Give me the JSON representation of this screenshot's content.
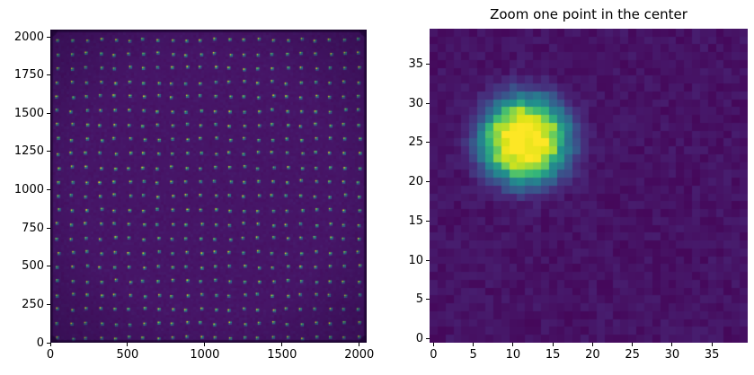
{
  "figure": {
    "background": "#ffffff",
    "kind": "matplotlib-figure"
  },
  "colors": {
    "axis_text": "#000000",
    "tick_mark": "#000000",
    "image_background_left": "#461567",
    "image_background_right": "#440b5a",
    "spot_peak": "#fde725",
    "viridis_anchors": [
      "#440154",
      "#482878",
      "#3e4a89",
      "#31688e",
      "#26828e",
      "#21918c",
      "#35b779",
      "#6ece58",
      "#b5de2b",
      "#dde318",
      "#fde725"
    ]
  },
  "chart_data": [
    {
      "type": "heatmap",
      "panel": "left",
      "title": "",
      "colormap": "viridis",
      "xlim": [
        0,
        2048
      ],
      "ylim": [
        0,
        2048
      ],
      "xticks": [
        0,
        500,
        1000,
        1500,
        2000
      ],
      "yticks": [
        0,
        250,
        500,
        750,
        1000,
        1250,
        1500,
        1750,
        2000
      ],
      "grid_on": false,
      "background_value": 0.052,
      "noise_amplitude": 0.012,
      "point_grid": {
        "nx": 22,
        "ny": 22,
        "x_start": 50,
        "y_start": 30,
        "spacing": 92.8,
        "jitter": 9,
        "point_value_bright": [
          0.7,
          0.97
        ],
        "point_value_dim": [
          0.4,
          0.62
        ]
      },
      "description": "Full 2048x2048 detector image (viridis) containing a regular 22x22 grid of small point sources on a dark purple background with darkened edges and corners"
    },
    {
      "type": "heatmap",
      "panel": "right",
      "title": "Zoom one point in the center",
      "colormap": "viridis",
      "xlim": [
        -0.5,
        39.5
      ],
      "ylim": [
        -0.5,
        39.5
      ],
      "xticks": [
        0,
        5,
        10,
        15,
        20,
        25,
        30,
        35
      ],
      "yticks": [
        0,
        5,
        10,
        15,
        20,
        25,
        30,
        35
      ],
      "grid_on": false,
      "grid_size": 40,
      "background_value": 0.045,
      "noise_amplitude": 0.028,
      "spot": {
        "cx": 11.5,
        "cy": 25.3,
        "sigma": 3.8,
        "shape_exponent": 1.4,
        "peak": 1.0
      },
      "description": "40x40 pixel cutout of one point source: bright yellow-green mottled core near (11.5, 25.3) fading through green, teal and blue into the dark purple noisy background"
    }
  ]
}
